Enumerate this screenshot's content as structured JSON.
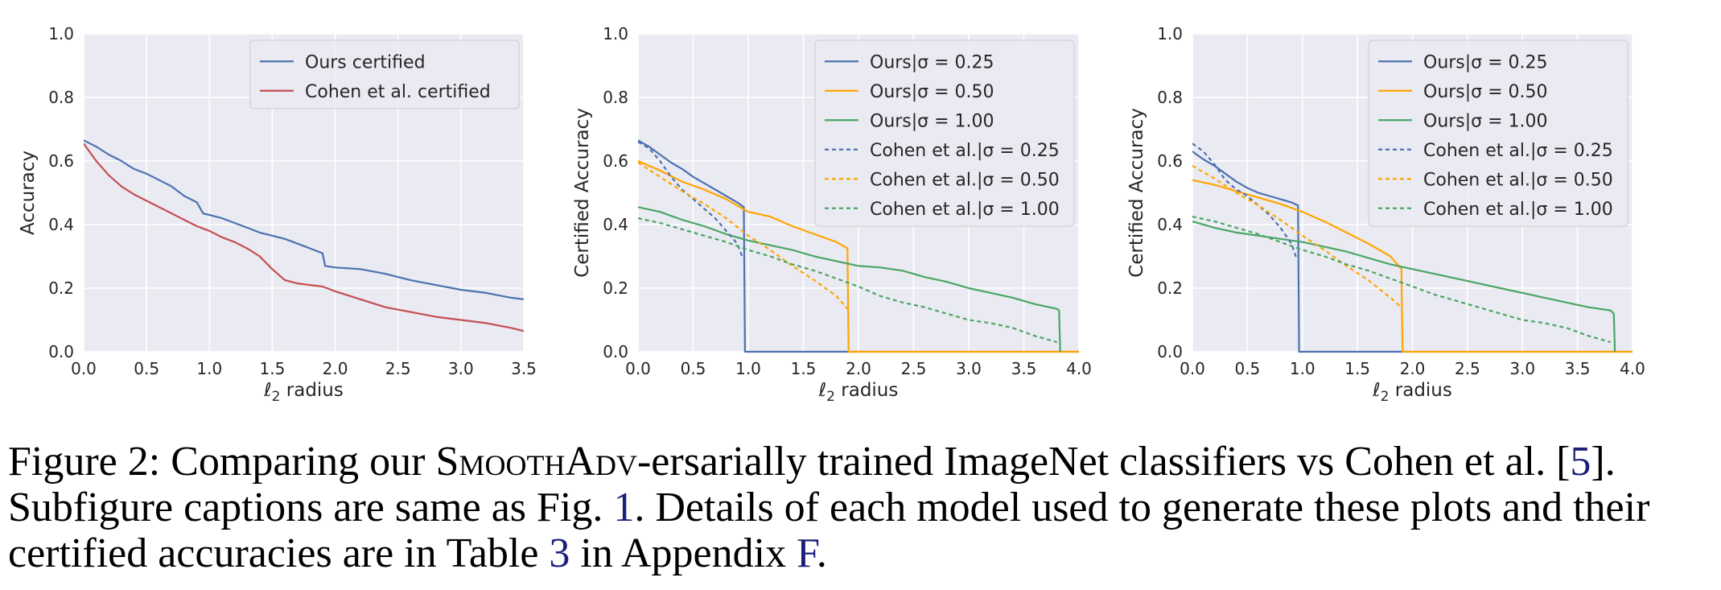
{
  "caption": {
    "prefix": "Figure 2: Comparing our ",
    "method": "SmoothAdv",
    "after_method": "-ersarially trained ImageNet classifiers vs Cohen et al. [",
    "ref_cohen": "5",
    "after_ref_cohen": "]. Subfigure captions are same as Fig. ",
    "ref_fig": "1",
    "after_ref_fig": ". Details of each model used to generate these plots and their certified accuracies are in Table ",
    "ref_table": "3",
    "after_ref_table": " in Appendix ",
    "ref_appendix": "F",
    "suffix": "."
  },
  "colors": {
    "background": "#eaeaf2",
    "grid": "#ffffff",
    "blue": "#4c72b0",
    "red": "#c44e52",
    "orange": "#ffa500",
    "green": "#4aa564"
  },
  "chart_data": [
    {
      "type": "line",
      "title": "",
      "xlabel": "ℓ2 radius",
      "ylabel": "Accuracy",
      "xlim": [
        0,
        3.5
      ],
      "ylim": [
        0,
        1
      ],
      "xticks": [
        0,
        0.5,
        1,
        1.5,
        2,
        2.5,
        3,
        3.5
      ],
      "xtick_labels": [
        "0.0",
        "0.5",
        "1.0",
        "1.5",
        "2.0",
        "2.5",
        "3.0",
        "3.5"
      ],
      "yticks": [
        0,
        0.2,
        0.4,
        0.6,
        0.8,
        1
      ],
      "ytick_labels": [
        "0.0",
        "0.2",
        "0.4",
        "0.6",
        "0.8",
        "1.0"
      ],
      "grid": true,
      "legend_position": "top-right",
      "series": [
        {
          "name": "Ours certified",
          "color": "#4c72b0",
          "dash": "solid",
          "x": [
            0,
            0.1,
            0.2,
            0.3,
            0.4,
            0.5,
            0.6,
            0.7,
            0.8,
            0.9,
            0.95,
            1.0,
            1.1,
            1.2,
            1.3,
            1.4,
            1.5,
            1.6,
            1.7,
            1.8,
            1.9,
            1.92,
            2.0,
            2.2,
            2.4,
            2.6,
            2.8,
            3.0,
            3.2,
            3.4,
            3.5
          ],
          "y": [
            0.665,
            0.645,
            0.62,
            0.6,
            0.575,
            0.56,
            0.54,
            0.52,
            0.49,
            0.47,
            0.435,
            0.43,
            0.42,
            0.405,
            0.39,
            0.375,
            0.365,
            0.355,
            0.34,
            0.325,
            0.31,
            0.27,
            0.265,
            0.26,
            0.245,
            0.225,
            0.21,
            0.195,
            0.185,
            0.17,
            0.165
          ]
        },
        {
          "name": "Cohen et al. certified",
          "color": "#c44e52",
          "dash": "solid",
          "x": [
            0,
            0.1,
            0.2,
            0.3,
            0.4,
            0.5,
            0.6,
            0.7,
            0.8,
            0.9,
            1.0,
            1.1,
            1.2,
            1.3,
            1.4,
            1.5,
            1.6,
            1.7,
            1.8,
            1.9,
            2.0,
            2.2,
            2.4,
            2.6,
            2.8,
            3.0,
            3.2,
            3.4,
            3.5
          ],
          "y": [
            0.655,
            0.6,
            0.555,
            0.52,
            0.495,
            0.475,
            0.455,
            0.435,
            0.415,
            0.395,
            0.38,
            0.36,
            0.345,
            0.325,
            0.3,
            0.26,
            0.225,
            0.215,
            0.21,
            0.205,
            0.19,
            0.165,
            0.14,
            0.125,
            0.11,
            0.1,
            0.09,
            0.075,
            0.065
          ]
        }
      ]
    },
    {
      "type": "line",
      "title": "",
      "xlabel": "ℓ2 radius",
      "ylabel": "Certified Accuracy",
      "xlim": [
        0,
        4
      ],
      "ylim": [
        0,
        1
      ],
      "xticks": [
        0,
        0.5,
        1,
        1.5,
        2,
        2.5,
        3,
        3.5,
        4
      ],
      "xtick_labels": [
        "0.0",
        "0.5",
        "1.0",
        "1.5",
        "2.0",
        "2.5",
        "3.0",
        "3.5",
        "4.0"
      ],
      "yticks": [
        0,
        0.2,
        0.4,
        0.6,
        0.8,
        1
      ],
      "ytick_labels": [
        "0.0",
        "0.2",
        "0.4",
        "0.6",
        "0.8",
        "1.0"
      ],
      "grid": true,
      "legend_position": "top-right",
      "series": [
        {
          "name": "Ours|σ = 0.25",
          "color": "#4c72b0",
          "dash": "solid",
          "x": [
            0,
            0.1,
            0.2,
            0.3,
            0.4,
            0.5,
            0.6,
            0.7,
            0.8,
            0.9,
            0.96,
            0.97,
            1.0,
            4.0
          ],
          "y": [
            0.665,
            0.645,
            0.62,
            0.595,
            0.575,
            0.55,
            0.53,
            0.51,
            0.49,
            0.47,
            0.455,
            0,
            0,
            0
          ]
        },
        {
          "name": "Ours|σ = 0.50",
          "color": "#ffa500",
          "dash": "solid",
          "x": [
            0,
            0.2,
            0.4,
            0.6,
            0.8,
            1.0,
            1.2,
            1.4,
            1.6,
            1.8,
            1.9,
            1.91,
            2.0,
            4.0
          ],
          "y": [
            0.6,
            0.57,
            0.535,
            0.51,
            0.48,
            0.44,
            0.425,
            0.395,
            0.37,
            0.345,
            0.325,
            0,
            0,
            0
          ]
        },
        {
          "name": "Ours|σ = 1.00",
          "color": "#4aa564",
          "dash": "solid",
          "x": [
            0,
            0.2,
            0.4,
            0.6,
            0.8,
            1.0,
            1.2,
            1.4,
            1.6,
            1.8,
            2.0,
            2.2,
            2.4,
            2.6,
            2.8,
            3.0,
            3.2,
            3.4,
            3.6,
            3.8,
            3.82,
            3.83
          ],
          "y": [
            0.455,
            0.44,
            0.415,
            0.395,
            0.37,
            0.35,
            0.335,
            0.32,
            0.3,
            0.285,
            0.27,
            0.265,
            0.255,
            0.235,
            0.22,
            0.2,
            0.185,
            0.17,
            0.15,
            0.135,
            0.13,
            0
          ]
        },
        {
          "name": "Cohen et al.|σ = 0.25",
          "color": "#4c72b0",
          "dash": "dotted",
          "x": [
            0,
            0.1,
            0.2,
            0.3,
            0.4,
            0.5,
            0.6,
            0.7,
            0.8,
            0.9,
            0.95
          ],
          "y": [
            0.66,
            0.64,
            0.6,
            0.55,
            0.51,
            0.48,
            0.45,
            0.42,
            0.38,
            0.34,
            0.295
          ]
        },
        {
          "name": "Cohen et al.|σ = 0.50",
          "color": "#ffa500",
          "dash": "dotted",
          "x": [
            0,
            0.2,
            0.4,
            0.6,
            0.8,
            1.0,
            1.2,
            1.4,
            1.6,
            1.8,
            1.9
          ],
          "y": [
            0.595,
            0.55,
            0.505,
            0.465,
            0.42,
            0.365,
            0.32,
            0.27,
            0.225,
            0.175,
            0.135
          ]
        },
        {
          "name": "Cohen et al.|σ = 1.00",
          "color": "#4aa564",
          "dash": "dotted",
          "x": [
            0,
            0.2,
            0.4,
            0.6,
            0.8,
            1.0,
            1.2,
            1.4,
            1.6,
            1.8,
            2.0,
            2.2,
            2.4,
            2.6,
            2.8,
            3.0,
            3.2,
            3.4,
            3.6,
            3.8
          ],
          "y": [
            0.42,
            0.405,
            0.385,
            0.365,
            0.345,
            0.32,
            0.3,
            0.275,
            0.255,
            0.23,
            0.205,
            0.175,
            0.155,
            0.14,
            0.12,
            0.1,
            0.09,
            0.075,
            0.05,
            0.03
          ]
        }
      ]
    },
    {
      "type": "line",
      "title": "",
      "xlabel": "ℓ2 radius",
      "ylabel": "Certified Accuracy",
      "xlim": [
        0,
        4
      ],
      "ylim": [
        0,
        1
      ],
      "xticks": [
        0,
        0.5,
        1,
        1.5,
        2,
        2.5,
        3,
        3.5,
        4
      ],
      "xtick_labels": [
        "0.0",
        "0.5",
        "1.0",
        "1.5",
        "2.0",
        "2.5",
        "3.0",
        "3.5",
        "4.0"
      ],
      "yticks": [
        0,
        0.2,
        0.4,
        0.6,
        0.8,
        1
      ],
      "ytick_labels": [
        "0.0",
        "0.2",
        "0.4",
        "0.6",
        "0.8",
        "1.0"
      ],
      "grid": true,
      "legend_position": "top-right",
      "series": [
        {
          "name": "Ours|σ = 0.25",
          "color": "#4c72b0",
          "dash": "solid",
          "x": [
            0,
            0.1,
            0.2,
            0.3,
            0.4,
            0.5,
            0.6,
            0.7,
            0.8,
            0.9,
            0.96,
            0.97,
            1.0,
            4.0
          ],
          "y": [
            0.63,
            0.605,
            0.585,
            0.56,
            0.535,
            0.515,
            0.5,
            0.49,
            0.48,
            0.47,
            0.46,
            0,
            0,
            0
          ]
        },
        {
          "name": "Ours|σ = 0.50",
          "color": "#ffa500",
          "dash": "solid",
          "x": [
            0,
            0.2,
            0.4,
            0.6,
            0.8,
            1.0,
            1.2,
            1.4,
            1.6,
            1.8,
            1.9,
            1.91,
            2.0,
            4.0
          ],
          "y": [
            0.54,
            0.525,
            0.505,
            0.485,
            0.465,
            0.44,
            0.41,
            0.375,
            0.34,
            0.3,
            0.26,
            0,
            0,
            0
          ]
        },
        {
          "name": "Ours|σ = 1.00",
          "color": "#4aa564",
          "dash": "solid",
          "x": [
            0,
            0.2,
            0.4,
            0.6,
            0.8,
            1.0,
            1.2,
            1.4,
            1.6,
            1.8,
            2.0,
            2.2,
            2.4,
            2.6,
            2.8,
            3.0,
            3.2,
            3.4,
            3.6,
            3.8,
            3.83,
            3.84
          ],
          "y": [
            0.41,
            0.39,
            0.375,
            0.365,
            0.355,
            0.345,
            0.33,
            0.315,
            0.295,
            0.275,
            0.26,
            0.245,
            0.23,
            0.215,
            0.2,
            0.185,
            0.17,
            0.155,
            0.14,
            0.13,
            0.12,
            0
          ]
        },
        {
          "name": "Cohen et al.|σ = 0.25",
          "color": "#4c72b0",
          "dash": "dotted",
          "x": [
            0,
            0.1,
            0.2,
            0.3,
            0.4,
            0.5,
            0.6,
            0.7,
            0.8,
            0.9,
            0.95
          ],
          "y": [
            0.655,
            0.63,
            0.59,
            0.54,
            0.51,
            0.49,
            0.46,
            0.43,
            0.39,
            0.34,
            0.29
          ]
        },
        {
          "name": "Cohen et al.|σ = 0.50",
          "color": "#ffa500",
          "dash": "dotted",
          "x": [
            0,
            0.2,
            0.4,
            0.6,
            0.8,
            1.0,
            1.2,
            1.4,
            1.6,
            1.8,
            1.9
          ],
          "y": [
            0.585,
            0.545,
            0.5,
            0.46,
            0.415,
            0.365,
            0.32,
            0.27,
            0.225,
            0.17,
            0.14
          ]
        },
        {
          "name": "Cohen et al.|σ = 1.00",
          "color": "#4aa564",
          "dash": "dotted",
          "x": [
            0,
            0.2,
            0.4,
            0.6,
            0.8,
            1.0,
            1.2,
            1.4,
            1.6,
            1.8,
            2.0,
            2.2,
            2.4,
            2.6,
            2.8,
            3.0,
            3.2,
            3.4,
            3.6,
            3.8
          ],
          "y": [
            0.425,
            0.41,
            0.39,
            0.37,
            0.345,
            0.32,
            0.3,
            0.275,
            0.255,
            0.23,
            0.205,
            0.18,
            0.16,
            0.14,
            0.12,
            0.1,
            0.09,
            0.075,
            0.05,
            0.03
          ]
        }
      ]
    }
  ]
}
